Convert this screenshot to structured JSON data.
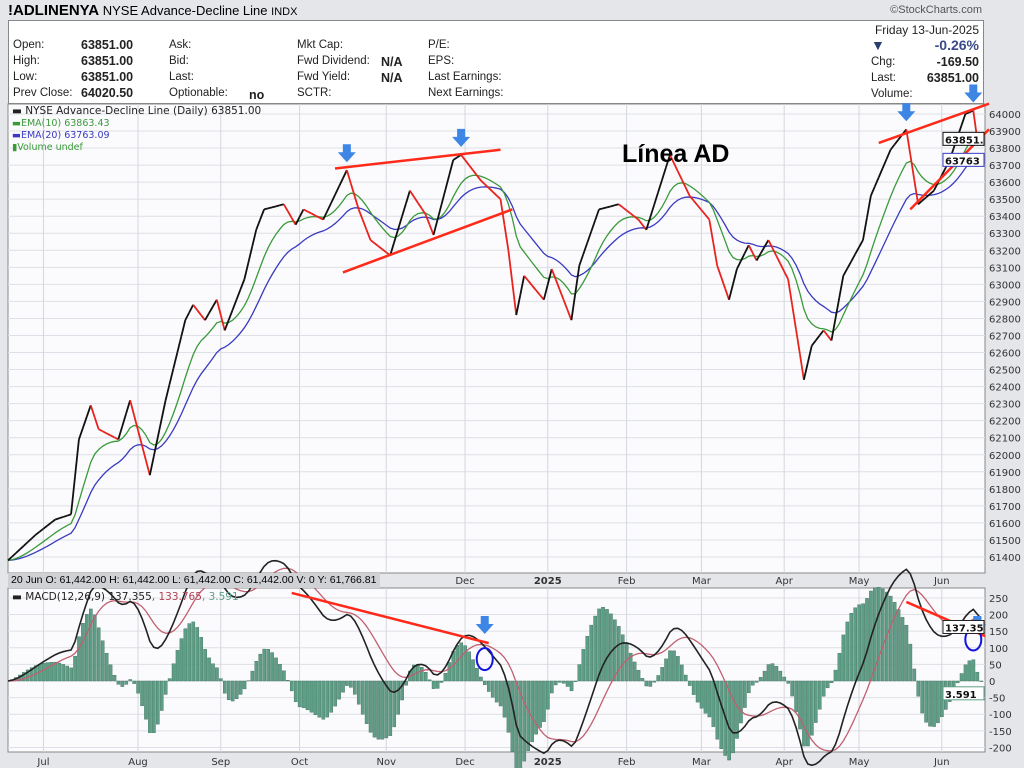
{
  "header": {
    "symbol": "!ADLINENYA",
    "name": "NYSE Advance-Decline Line",
    "exchange": "INDX",
    "brand": "©StockCharts.com"
  },
  "info": {
    "open_label": "Open:",
    "open": "63851.00",
    "high_label": "High:",
    "high": "63851.00",
    "low_label": "Low:",
    "low": "63851.00",
    "prev_label": "Prev Close:",
    "prev": "64020.50",
    "ask_label": "Ask:",
    "bid_label": "Bid:",
    "last_label2": "Last:",
    "optionable_label": "Optionable:",
    "optionable": "no",
    "mktcap_label": "Mkt Cap:",
    "fwddiv_label": "Fwd Dividend:",
    "fwddiv": "N/A",
    "fwdyield_label": "Fwd Yield:",
    "fwdyield": "N/A",
    "sctr_label": "SCTR:",
    "pe_label": "P/E:",
    "eps_label": "EPS:",
    "lastearn_label": "Last Earnings:",
    "nextearn_label": "Next Earnings:",
    "date": "Friday  13-Jun-2025",
    "pct": "-0.26%",
    "chg_label": "Chg:",
    "chg": "-169.50",
    "last_label": "Last:",
    "last": "63851.00",
    "volume_label": "Volume:"
  },
  "legend": {
    "main": "NYSE Advance-Decline Line (Daily) 63851.00",
    "ema10": "EMA(10) 63863.43",
    "ema20": "EMA(20) 63763.09",
    "volume": "Volume undef"
  },
  "datebar": "20 Jun O: 61,442.00   H: 61,442.00   L: 61,442.00   C: 61,442.00   V: 0   Y: 61,766.81",
  "macd_legend": {
    "label": "MACD(12,26,9) 137.355",
    "signal": ", 133.765",
    "hist": ", 3.591"
  },
  "colors": {
    "up": "#111111",
    "down": "#e8231e",
    "ema10": "#3a9a3a",
    "ema20": "#3a3ac0",
    "macd": "#222222",
    "signal": "#c06070",
    "hist": "#5f9e86",
    "trend": "#ff2a1a",
    "arrow": "#3d86e6",
    "circle": "#1414e0"
  },
  "chart_data": [
    {
      "type": "line",
      "title": "Línea AD",
      "ylim": [
        61300,
        64100
      ],
      "yticks": [
        61400,
        61500,
        61600,
        61700,
        61800,
        61900,
        62000,
        62100,
        62200,
        62300,
        62400,
        62500,
        62600,
        62700,
        62800,
        62900,
        63000,
        63100,
        63200,
        63300,
        63400,
        63500,
        63600,
        63700,
        63800,
        63900,
        64000
      ],
      "x_unit": "trading day index",
      "xlim": [
        0,
        247
      ],
      "xticks": [
        {
          "d": 9,
          "label": "Jul"
        },
        {
          "d": 33,
          "label": "Aug"
        },
        {
          "d": 54,
          "label": "Sep"
        },
        {
          "d": 74,
          "label": "Oct"
        },
        {
          "d": 96,
          "label": "Nov"
        },
        {
          "d": 116,
          "label": "Dec"
        },
        {
          "d": 137,
          "label": "2025"
        },
        {
          "d": 157,
          "label": "Feb"
        },
        {
          "d": 176,
          "label": "Mar"
        },
        {
          "d": 197,
          "label": "Apr"
        },
        {
          "d": 216,
          "label": "May"
        },
        {
          "d": 237,
          "label": "Jun"
        }
      ],
      "series_points": [
        [
          0,
          61380
        ],
        [
          7,
          61530
        ],
        [
          12,
          61620
        ],
        [
          16,
          61650
        ],
        [
          18,
          62090
        ],
        [
          21,
          62290
        ],
        [
          23,
          62150
        ],
        [
          28,
          62090
        ],
        [
          31,
          62320
        ],
        [
          36,
          61880
        ],
        [
          40,
          62320
        ],
        [
          45,
          62790
        ],
        [
          47,
          62880
        ],
        [
          50,
          62790
        ],
        [
          53,
          62910
        ],
        [
          55,
          62730
        ],
        [
          60,
          63030
        ],
        [
          63,
          63320
        ],
        [
          65,
          63440
        ],
        [
          70,
          63470
        ],
        [
          73,
          63350
        ],
        [
          75,
          63440
        ],
        [
          80,
          63380
        ],
        [
          86,
          63670
        ],
        [
          89,
          63440
        ],
        [
          92,
          63260
        ],
        [
          97,
          63170
        ],
        [
          102,
          63550
        ],
        [
          106,
          63410
        ],
        [
          108,
          63290
        ],
        [
          113,
          63730
        ],
        [
          115,
          63760
        ],
        [
          120,
          63610
        ],
        [
          125,
          63500
        ],
        [
          127,
          63200
        ],
        [
          129,
          62820
        ],
        [
          131,
          63050
        ],
        [
          136,
          62910
        ],
        [
          138,
          63090
        ],
        [
          143,
          62790
        ],
        [
          145,
          63110
        ],
        [
          150,
          63440
        ],
        [
          155,
          63470
        ],
        [
          160,
          63380
        ],
        [
          162,
          63320
        ],
        [
          168,
          63760
        ],
        [
          173,
          63520
        ],
        [
          178,
          63380
        ],
        [
          180,
          63110
        ],
        [
          183,
          62910
        ],
        [
          185,
          63090
        ],
        [
          188,
          63230
        ],
        [
          190,
          63140
        ],
        [
          193,
          63260
        ],
        [
          198,
          63030
        ],
        [
          201,
          62590
        ],
        [
          202,
          62440
        ],
        [
          204,
          62640
        ],
        [
          207,
          62730
        ],
        [
          209,
          62670
        ],
        [
          212,
          63050
        ],
        [
          217,
          63260
        ],
        [
          219,
          63520
        ],
        [
          224,
          63790
        ],
        [
          228,
          63910
        ],
        [
          231,
          63470
        ],
        [
          235,
          63550
        ],
        [
          239,
          63730
        ],
        [
          243,
          64000
        ],
        [
          245,
          64020
        ],
        [
          246,
          63851
        ]
      ],
      "last_values": {
        "close": "63851.",
        "ema20": "63763",
        "tick_top": "64000",
        "tick_next": "63900",
        "tick_low": "63700"
      },
      "trendlines": [
        [
          [
            83,
            63680
          ],
          [
            125,
            63790
          ]
        ],
        [
          [
            85,
            63070
          ],
          [
            128,
            63440
          ]
        ],
        [
          [
            221,
            63830
          ],
          [
            249,
            64060
          ]
        ],
        [
          [
            229,
            63440
          ],
          [
            249,
            63910
          ]
        ]
      ],
      "arrows": [
        86,
        115,
        228,
        245
      ]
    },
    {
      "type": "line",
      "title": "MACD(12,26,9)",
      "ylim": [
        -220,
        275
      ],
      "yticks": [
        250,
        200,
        150,
        100,
        50,
        0,
        -50,
        -100,
        -150,
        -200
      ],
      "values": {
        "macd": "137.35",
        "hist": "3.591"
      },
      "trendlines": [
        [
          [
            72,
            265
          ],
          [
            122,
            114
          ]
        ],
        [
          [
            228,
            238
          ],
          [
            248,
            135
          ]
        ]
      ],
      "arrows": [
        121,
        246
      ],
      "circles": [
        [
          121,
          66
        ],
        [
          245,
          125
        ]
      ]
    }
  ]
}
